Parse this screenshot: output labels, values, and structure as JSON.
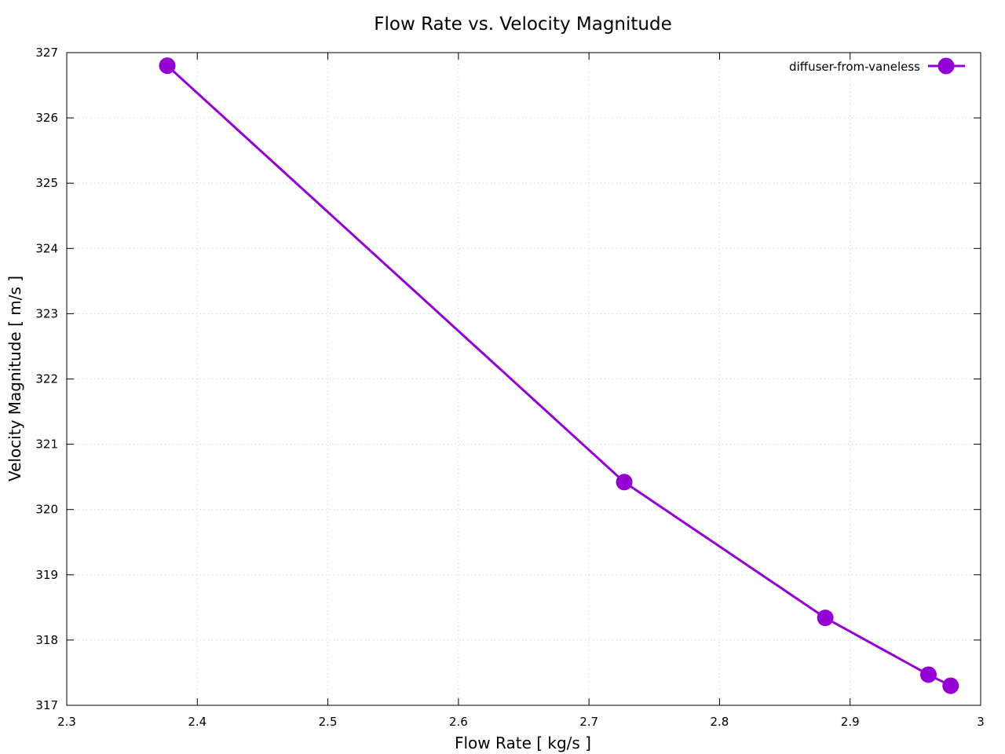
{
  "chart_data": {
    "type": "line",
    "title": "Flow Rate vs. Velocity Magnitude",
    "xlabel": "Flow Rate [ kg/s ]",
    "ylabel": "Velocity Magnitude [ m/s ]",
    "xlim": [
      2.3,
      3.0
    ],
    "ylim": [
      317,
      327
    ],
    "xticks": [
      "2.3",
      "2.4",
      "2.5",
      "2.6",
      "2.7",
      "2.8",
      "2.9",
      "3"
    ],
    "yticks": [
      "317",
      "318",
      "319",
      "320",
      "321",
      "322",
      "323",
      "324",
      "325",
      "326",
      "327"
    ],
    "grid": true,
    "legend_position": "top-right",
    "series": [
      {
        "name": "diffuser-from-vaneless",
        "color": "#9400d3",
        "marker": "filled-circle",
        "x": [
          2.377,
          2.727,
          2.881,
          2.96,
          2.977
        ],
        "y": [
          326.8,
          320.42,
          318.34,
          317.47,
          317.3
        ]
      }
    ]
  }
}
